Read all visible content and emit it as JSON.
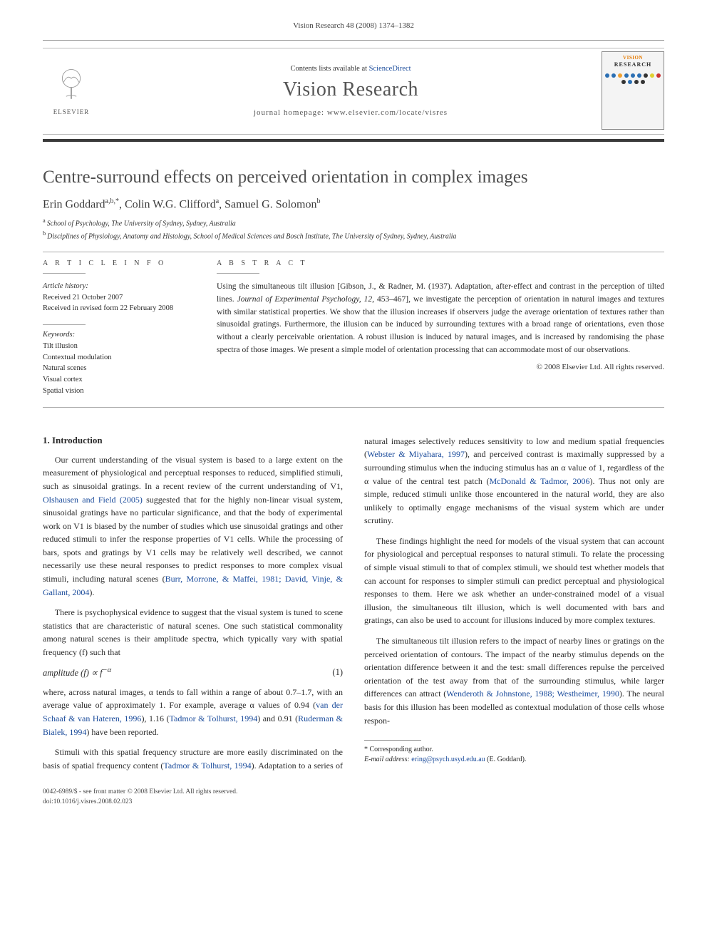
{
  "header": {
    "citation": "Vision Research 48 (2008) 1374–1382"
  },
  "masthead": {
    "publisher": "ELSEVIER",
    "contents_prefix": "Contents lists available at ",
    "contents_link": "ScienceDirect",
    "journal_title": "Vision Research",
    "homepage_label": "journal homepage: www.elsevier.com/locate/visres",
    "cover_brand": "VISION",
    "cover_subtitle": "RESEARCH",
    "cover_dot_colors": [
      "#2b6fb3",
      "#2b6fb3",
      "#f0a030",
      "#2b6fb3",
      "#2b6fb3",
      "#2b6fb3",
      "#333",
      "#e0d030",
      "#cc3333",
      "#333",
      "#2b6fb3",
      "#333",
      "#333"
    ]
  },
  "article": {
    "title": "Centre-surround effects on perceived orientation in complex images",
    "authors_html": "Erin Goddard",
    "author_sup1": "a,b,*",
    "author2": ", Colin W.G. Clifford",
    "author_sup2": "a",
    "author3": ", Samuel G. Solomon",
    "author_sup3": "b",
    "affiliations": {
      "a": "School of Psychology, The University of Sydney, Sydney, Australia",
      "b": "Disciplines of Physiology, Anatomy and Histology, School of Medical Sciences and Bosch Institute, The University of Sydney, Sydney, Australia"
    }
  },
  "info": {
    "section_label": "A R T I C L E   I N F O",
    "history_heading": "Article history:",
    "received": "Received 21 October 2007",
    "revised": "Received in revised form 22 February 2008",
    "keywords_heading": "Keywords:",
    "keywords": [
      "Tilt illusion",
      "Contextual modulation",
      "Natural scenes",
      "Visual cortex",
      "Spatial vision"
    ]
  },
  "abstract": {
    "section_label": "A B S T R A C T",
    "text_parts": [
      "Using the simultaneous tilt illusion [Gibson, J., & Radner, M. (1937). Adaptation, after-effect and contrast in the perception of tilted lines. ",
      "Journal of Experimental Psychology, 12",
      ", 453–467], we investigate the perception of orientation in natural images and textures with similar statistical properties. We show that the illusion increases if observers judge the average orientation of textures rather than sinusoidal gratings. Furthermore, the illusion can be induced by surrounding textures with a broad range of orientations, even those without a clearly perceivable orientation. A robust illusion is induced by natural images, and is increased by randomising the phase spectra of those images. We present a simple model of orientation processing that can accommodate most of our observations."
    ],
    "copyright": "© 2008 Elsevier Ltd. All rights reserved."
  },
  "body": {
    "section_heading": "1. Introduction",
    "p1_a": "Our current understanding of the visual system is based to a large extent on the measurement of physiological and perceptual responses to reduced, simplified stimuli, such as sinusoidal gratings. In a recent review of the current understanding of V1, ",
    "p1_link1": "Olshausen and Field (2005)",
    "p1_b": " suggested that for the highly non-linear visual system, sinusoidal gratings have no particular significance, and that the body of experimental work on V1 is biased by the number of studies which use sinusoidal gratings and other reduced stimuli to infer the response properties of V1 cells. While the processing of bars, spots and gratings by V1 cells may be relatively well described, we cannot necessarily use these neural responses to predict responses to more complex visual stimuli, including natural scenes (",
    "p1_link2": "Burr, Morrone, & Maffei, 1981; David, Vinje, & Gallant, 2004",
    "p1_c": ").",
    "p2": "There is psychophysical evidence to suggest that the visual system is tuned to scene statistics that are characteristic of natural scenes. One such statistical commonality among natural scenes is their amplitude spectra, which typically vary with spatial frequency (f) such that",
    "eq": "amplitude (f) ∝ f",
    "eq_exp": "−α",
    "eq_num": "(1)",
    "p3_a": "where, across natural images, α tends to fall within a range of about 0.7–1.7, with an average value of approximately 1. For example, average α values of 0.94 (",
    "p3_link1": "van der Schaaf & van Hateren, 1996",
    "p3_b": "), 1.16 (",
    "p3_link2": "Tadmor & Tolhurst, 1994",
    "p3_c": ") and 0.91 (",
    "p3_link3": "Ruderman & Bialek, 1994",
    "p3_d": ") have been reported.",
    "p4_a": "Stimuli with this spatial frequency structure are more easily discriminated on the basis of spatial frequency content (",
    "p4_link1": "Tadmor & Tolhurst, 1994",
    "p4_b": "). Adaptation to a series of natural images selectively reduces sensitivity to low and medium spatial frequencies (",
    "p4_link2": "Webster & Miyahara, 1997",
    "p4_c": "), and perceived contrast is maximally suppressed by a surrounding stimulus when the inducing stimulus has an α value of 1, regardless of the α value of the central test patch (",
    "p4_link3": "McDonald & Tadmor, 2006",
    "p4_d": "). Thus not only are simple, reduced stimuli unlike those encountered in the natural world, they are also unlikely to optimally engage mechanisms of the visual system which are under scrutiny.",
    "p5": "These findings highlight the need for models of the visual system that can account for physiological and perceptual responses to natural stimuli. To relate the processing of simple visual stimuli to that of complex stimuli, we should test whether models that can account for responses to simpler stimuli can predict perceptual and physiological responses to them. Here we ask whether an under-constrained model of a visual illusion, the simultaneous tilt illusion, which is well documented with bars and gratings, can also be used to account for illusions induced by more complex textures.",
    "p6_a": "The simultaneous tilt illusion refers to the impact of nearby lines or gratings on the perceived orientation of contours. The impact of the nearby stimulus depends on the orientation difference between it and the test: small differences repulse the perceived orientation of the test away from that of the surrounding stimulus, while larger differences can attract (",
    "p6_link1": "Wenderoth & Johnstone, 1988; Westheimer, 1990",
    "p6_b": "). The neural basis for this illusion has been modelled as contextual modulation of those cells whose respon-"
  },
  "footnote": {
    "corr": "* Corresponding author.",
    "email_label": "E-mail address: ",
    "email": "ering@psych.usyd.edu.au",
    "email_suffix": " (E. Goddard)."
  },
  "bottom": {
    "line1": "0042-6989/$ - see front matter © 2008 Elsevier Ltd. All rights reserved.",
    "line2": "doi:10.1016/j.visres.2008.02.023"
  }
}
